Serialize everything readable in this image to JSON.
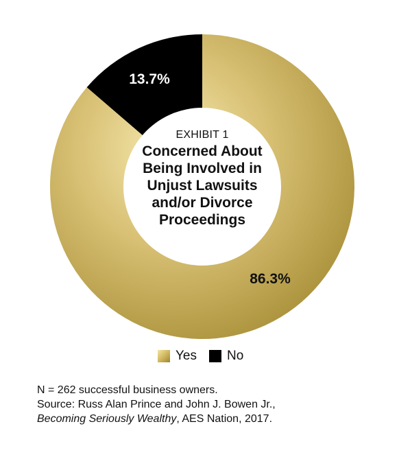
{
  "chart_data": {
    "type": "pie",
    "donut": true,
    "subtitle": "EXHIBIT 1",
    "title": "Concerned About Being Involved in Unjust Lawsuits and/or Divorce Proceedings",
    "title_lines": [
      "Concerned About",
      "Being Involved in",
      "Unjust Lawsuits",
      "and/or Divorce",
      "Proceedings"
    ],
    "slices": [
      {
        "name": "Yes",
        "value": 86.3,
        "label": "86.3%",
        "color": "#cdb35a"
      },
      {
        "name": "No",
        "value": 13.7,
        "label": "13.7%",
        "color": "#000000"
      }
    ],
    "legend": [
      "Yes",
      "No"
    ]
  },
  "notes": {
    "line1": "N = 262 successful business owners.",
    "line2": "Source: Russ Alan Prince and John J. Bowen Jr.,",
    "line3_italic": "Becoming Seriously Wealthy",
    "line3_rest": ", AES Nation, 2017."
  },
  "colors": {
    "gold_light": "#f3e6a0",
    "gold_mid": "#cdb35a",
    "gold_dark": "#9c8530",
    "black": "#000000"
  }
}
